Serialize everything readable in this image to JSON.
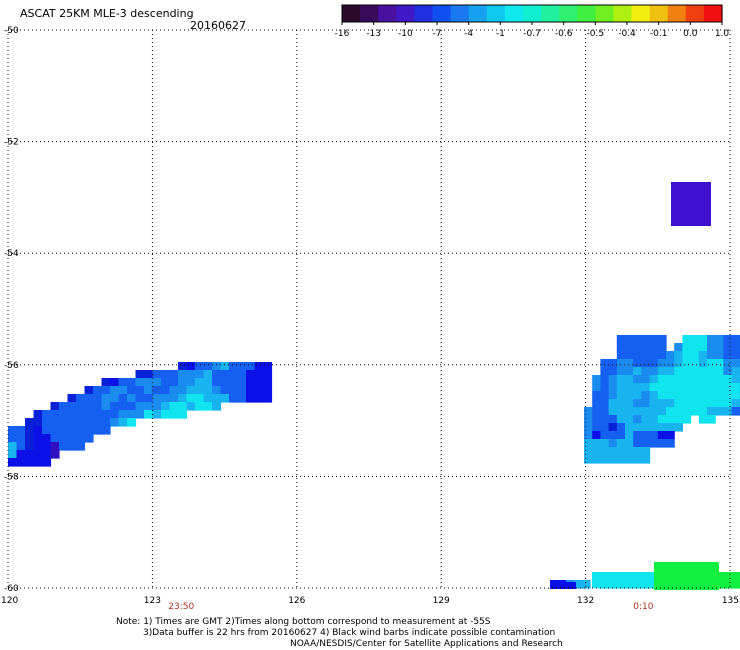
{
  "header": {
    "title": "ASCAT 25KM MLE-3 descending",
    "date": "20160627"
  },
  "colorbar": {
    "colors": [
      "#2a0a2a",
      "#3a0a5a",
      "#4a10a0",
      "#4018c8",
      "#2030e0",
      "#1050f0",
      "#1a78f0",
      "#18a0f0",
      "#10c8f0",
      "#10e8f0",
      "#10f0d0",
      "#20f0a0",
      "#30f070",
      "#40f040",
      "#70f020",
      "#b0f010",
      "#f0f010",
      "#f0c010",
      "#f08010",
      "#f04010",
      "#f01010"
    ],
    "labels": [
      "-16",
      "-13",
      "-10",
      "-7",
      "-4",
      "-1",
      "-0.7",
      "-0.6",
      "-0.5",
      "-0.4",
      "-0.1",
      "0.0",
      "1.0"
    ]
  },
  "axes": {
    "lon_ticks": [
      "120",
      "123",
      "126",
      "129",
      "132",
      "135"
    ],
    "lat_ticks": [
      "-50",
      "-52",
      "-54",
      "-56",
      "-58",
      "-60"
    ],
    "lon_range": [
      120,
      135
    ],
    "lat_range": [
      -50,
      -60
    ]
  },
  "times": [
    {
      "label": "23:50",
      "lon": 123.6
    },
    {
      "label": "0:10",
      "lon": 133.2
    }
  ],
  "notes": [
    "Note: 1) Times are GMT 2)Times along bottom correspond to measurement at -55S",
    "3)Data buffer is 22 hrs from 20160627 4) Black wind barbs indicate possible contamination",
    "NOAA/NESDIS/Center for Satellite Applications and Research"
  ]
}
